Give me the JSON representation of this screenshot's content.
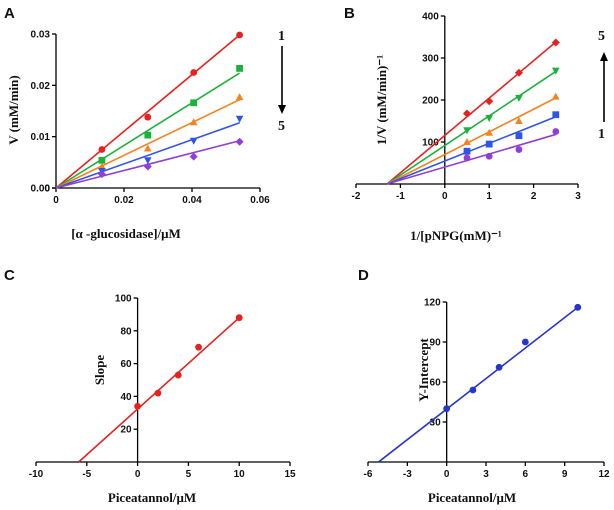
{
  "colors": {
    "s1": "#e8211e",
    "s2": "#19b23b",
    "s3": "#f5821f",
    "s4": "#2f54e8",
    "s5": "#8f3fd6",
    "c_red": "#e8211e",
    "d_blue": "#2535cf"
  },
  "chart_data": [
    {
      "panel": "A",
      "type": "scatter",
      "xlabel": "[α -glucosidase]/μM",
      "ylabel": "V (mM/min)",
      "xlim": [
        0,
        0.06
      ],
      "ylim": [
        0,
        0.03
      ],
      "xticks": [
        0,
        0.02,
        0.04,
        0.06
      ],
      "yticks": [
        0,
        0.01,
        0.02,
        0.03
      ],
      "x": [
        0.0135,
        0.027,
        0.0405,
        0.054
      ],
      "series": [
        {
          "values": [
            0.0075,
            0.0138,
            0.0225,
            0.0298
          ],
          "marker": "circle",
          "color_key": "s1",
          "fit": [
            [
              0,
              0
            ],
            [
              0.054,
              0.0298
            ]
          ]
        },
        {
          "values": [
            0.0054,
            0.0103,
            0.0166,
            0.0233
          ],
          "marker": "square",
          "color_key": "s2",
          "fit": [
            [
              0,
              0
            ],
            [
              0.054,
              0.0224
            ]
          ]
        },
        {
          "values": [
            0.0042,
            0.0077,
            0.0128,
            0.0177
          ],
          "marker": "triangle-up",
          "color_key": "s3",
          "fit": [
            [
              0,
              0
            ],
            [
              0.054,
              0.0172
            ]
          ]
        },
        {
          "values": [
            0.0033,
            0.0054,
            0.0092,
            0.0135
          ],
          "marker": "triangle-down",
          "color_key": "s4",
          "fit": [
            [
              0,
              0
            ],
            [
              0.054,
              0.0127
            ]
          ]
        },
        {
          "values": [
            0.0027,
            0.0042,
            0.0061,
            0.009
          ],
          "marker": "diamond",
          "color_key": "s5",
          "fit": [
            [
              0,
              0
            ],
            [
              0.054,
              0.0092
            ]
          ]
        }
      ],
      "annotations": {
        "top": "1",
        "bottom": "5",
        "arrow": "down"
      }
    },
    {
      "panel": "B",
      "type": "scatter",
      "xlabel": "1/[pNPG(mM)⁻¹",
      "ylabel": "1/V (mM/min)⁻¹",
      "xlim": [
        -2,
        3
      ],
      "ylim": [
        0,
        400
      ],
      "xticks": [
        -2,
        -1,
        0,
        1,
        2,
        3
      ],
      "yticks": [
        100,
        200,
        300,
        400
      ],
      "x": [
        0.5,
        1.0,
        1.67,
        2.5
      ],
      "series": [
        {
          "values": [
            168,
            197,
            265,
            337
          ],
          "marker": "diamond",
          "color_key": "s1",
          "fit": [
            [
              -1.3,
              0
            ],
            [
              2.5,
              338
            ]
          ]
        },
        {
          "values": [
            128,
            157,
            205,
            270
          ],
          "marker": "triangle-down",
          "color_key": "s2",
          "fit": [
            [
              -1.3,
              0
            ],
            [
              2.5,
              268
            ]
          ]
        },
        {
          "values": [
            100,
            122,
            150,
            208
          ],
          "marker": "triangle-up",
          "color_key": "s3",
          "fit": [
            [
              -1.3,
              0
            ],
            [
              2.5,
              205
            ]
          ]
        },
        {
          "values": [
            78,
            95,
            115,
            165
          ],
          "marker": "square",
          "color_key": "s4",
          "fit": [
            [
              -1.3,
              0
            ],
            [
              2.5,
              160
            ]
          ]
        },
        {
          "values": [
            62,
            66,
            82,
            125
          ],
          "marker": "circle",
          "color_key": "s5",
          "fit": [
            [
              -1.3,
              0
            ],
            [
              2.5,
              118
            ]
          ]
        }
      ],
      "annotations": {
        "top": "5",
        "bottom": "1",
        "arrow": "up"
      }
    },
    {
      "panel": "C",
      "type": "scatter",
      "xlabel": "Piceatannol/μM",
      "ylabel": "Slope",
      "xlim": [
        -10,
        15
      ],
      "ylim": [
        0,
        100
      ],
      "xticks": [
        -10,
        -5,
        0,
        5,
        10,
        15
      ],
      "yticks": [
        20,
        40,
        60,
        80,
        100
      ],
      "series": [
        {
          "x": [
            0,
            2,
            4,
            6,
            10
          ],
          "values": [
            34,
            42,
            53,
            70,
            88
          ],
          "marker": "circle",
          "color_key": "c_red",
          "fit": [
            [
              -5.8,
              0
            ],
            [
              10,
              88
            ]
          ]
        }
      ]
    },
    {
      "panel": "D",
      "type": "scatter",
      "xlabel": "Piceatannol/μM",
      "ylabel": "Y-Intercept",
      "xlim": [
        -6,
        12
      ],
      "ylim": [
        0,
        120
      ],
      "xticks": [
        -6,
        -3,
        0,
        3,
        6,
        9,
        12
      ],
      "yticks": [
        30,
        60,
        90,
        120
      ],
      "series": [
        {
          "x": [
            0,
            2,
            4,
            6,
            10
          ],
          "values": [
            40,
            54,
            71,
            90,
            116
          ],
          "marker": "circle",
          "color_key": "d_blue",
          "fit": [
            [
              -5.2,
              0
            ],
            [
              10,
              116
            ]
          ]
        }
      ]
    }
  ]
}
